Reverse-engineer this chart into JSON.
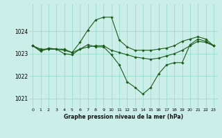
{
  "background_color": "#cceee8",
  "grid_color": "#99ddcc",
  "line_color": "#1a5c1a",
  "marker_color": "#1a5c1a",
  "title": "Graphe pression niveau de la mer (hPa)",
  "ylim": [
    1020.6,
    1025.2
  ],
  "xlim": [
    -0.5,
    23.5
  ],
  "yticks": [
    1021,
    1022,
    1023,
    1024
  ],
  "xtick_labels": [
    "0",
    "1",
    "2",
    "3",
    "4",
    "5",
    "6",
    "7",
    "8",
    "9",
    "10",
    "11",
    "12",
    "13",
    "14",
    "15",
    "16",
    "17",
    "18",
    "19",
    "20",
    "21",
    "22",
    "23"
  ],
  "series": [
    [
      1023.35,
      1023.15,
      1023.2,
      1023.2,
      1023.2,
      1023.05,
      1023.5,
      1024.05,
      1024.5,
      1024.62,
      1024.62,
      1023.6,
      1023.3,
      1023.15,
      1023.15,
      1023.15,
      1023.2,
      1023.25,
      1023.35,
      1023.55,
      1023.65,
      1023.75,
      1023.65,
      1023.35
    ],
    [
      1023.35,
      1023.1,
      1023.25,
      1023.2,
      1023.0,
      1022.95,
      1023.2,
      1023.4,
      1023.3,
      1023.3,
      1022.95,
      1022.5,
      1021.75,
      1021.5,
      1021.2,
      1021.5,
      1022.1,
      1022.5,
      1022.6,
      1022.6,
      1023.4,
      1023.65,
      1023.55,
      1023.35
    ],
    [
      1023.35,
      1023.2,
      1023.2,
      1023.2,
      1023.15,
      1023.05,
      1023.2,
      1023.3,
      1023.35,
      1023.35,
      1023.15,
      1023.05,
      1022.95,
      1022.85,
      1022.8,
      1022.75,
      1022.8,
      1022.9,
      1023.0,
      1023.15,
      1023.35,
      1023.55,
      1023.5,
      1023.35
    ]
  ]
}
